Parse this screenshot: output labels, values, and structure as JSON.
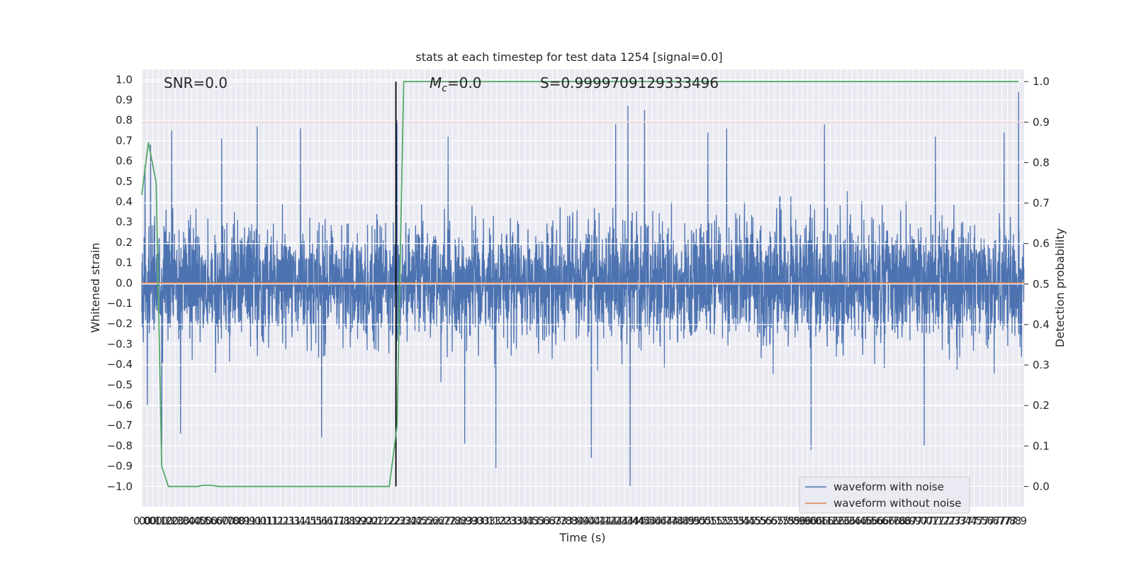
{
  "chart_data": {
    "type": "line",
    "title": "stats at each timestep for test data 1254 [signal=0.0]",
    "xlabel": "Time (s)",
    "ylabel_left": "Whitened strain",
    "ylabel_right": "Detection probability",
    "xlim": [
      0.0,
      7.95
    ],
    "ylim_left": [
      -1.1,
      1.05
    ],
    "ylim_right": [
      -0.05,
      1.03
    ],
    "grid": true,
    "x_ticks": [
      0.0,
      0.05,
      0.1,
      0.15,
      0.2,
      0.25,
      0.3,
      0.35,
      0.4,
      0.45,
      0.5,
      0.55,
      0.6,
      0.65,
      0.7,
      0.75,
      0.8,
      0.85,
      0.9,
      0.95,
      1.0,
      1.05,
      1.1,
      1.15,
      1.2,
      1.25,
      1.3,
      1.35,
      1.4,
      1.45,
      1.5,
      1.55,
      1.6,
      1.65,
      1.7,
      1.75,
      1.8,
      1.85,
      1.9,
      1.95,
      2.0,
      2.05,
      2.1,
      2.15,
      2.2,
      2.25,
      2.3,
      2.35,
      2.4,
      2.45,
      2.5,
      2.55,
      2.6,
      2.65,
      2.7,
      2.75,
      2.8,
      2.85,
      2.9,
      2.95,
      3.0,
      3.05,
      3.1,
      3.15,
      3.2,
      3.25,
      3.3,
      3.35,
      3.4,
      3.45,
      3.5,
      3.55,
      3.6,
      3.65,
      3.7,
      3.75,
      3.8,
      3.85,
      3.9,
      3.95,
      4.0,
      4.05,
      4.1,
      4.15,
      4.2,
      4.25,
      4.3,
      4.35,
      4.4,
      4.45,
      4.5,
      4.55,
      4.6,
      4.65,
      4.7,
      4.75,
      4.8,
      4.85,
      4.9,
      4.95,
      5.0,
      5.05,
      5.1,
      5.15,
      5.2,
      5.25,
      5.3,
      5.35,
      5.4,
      5.45,
      5.5,
      5.55,
      5.6,
      5.65,
      5.7,
      5.75,
      5.8,
      5.85,
      5.9,
      5.95,
      6.0,
      6.05,
      6.1,
      6.15,
      6.2,
      6.25,
      6.3,
      6.35,
      6.4,
      6.45,
      6.5,
      6.55,
      6.6,
      6.65,
      6.7,
      6.75,
      6.8,
      6.85,
      6.9,
      6.95,
      7.0,
      7.05,
      7.1,
      7.15,
      7.2,
      7.25,
      7.3,
      7.35,
      7.4,
      7.45,
      7.5,
      7.55,
      7.6,
      7.65,
      7.7,
      7.75,
      7.8,
      7.85,
      7.9
    ],
    "x_tick_labels": [
      "0.0",
      "0.0",
      "0.1",
      "0.1",
      "0.2",
      "0.2",
      "0.3",
      "0.3",
      "0.4",
      "0.4",
      "0.5",
      "0.5",
      "0.6",
      "0.6",
      "0.7",
      "0.7",
      "0.8",
      "0.8",
      "0.9",
      "0.9",
      "1.0",
      "1.0",
      "1.1",
      "1.1",
      "1.2",
      "1.2",
      "1.3",
      "1.3",
      "1.4",
      "1.4",
      "1.5",
      "1.5",
      "1.6",
      "1.6",
      "1.7",
      "1.7",
      "1.8",
      "1.8",
      "1.9",
      "1.9",
      "2.0",
      "2.0",
      "2.1",
      "2.1",
      "2.2",
      "2.2",
      "2.3",
      "2.3",
      "2.4",
      "2.4",
      "2.5",
      "2.5",
      "2.6",
      "2.6",
      "2.7",
      "2.7",
      "2.8",
      "2.8",
      "2.9",
      "2.9",
      "3.0",
      "3.0",
      "3.1",
      "3.1",
      "3.2",
      "3.2",
      "3.3",
      "3.3",
      "3.4",
      "3.4",
      "3.5",
      "3.5",
      "3.6",
      "3.6",
      "3.7",
      "3.7",
      "3.8",
      "3.8",
      "3.9",
      "3.9",
      "4.0",
      "4.0",
      "4.1",
      "4.1",
      "4.2",
      "4.2",
      "4.3",
      "4.3",
      "4.4",
      "4.4",
      "4.5",
      "4.5",
      "4.6",
      "4.6",
      "4.7",
      "4.7",
      "4.8",
      "4.8",
      "4.9",
      "4.9",
      "5.0",
      "5.0",
      "5.1",
      "5.1",
      "5.2",
      "5.2",
      "5.3",
      "5.3",
      "5.4",
      "5.4",
      "5.5",
      "5.5",
      "5.6",
      "5.6",
      "5.7",
      "5.7",
      "5.8",
      "5.8",
      "5.9",
      "5.9",
      "6.0",
      "6.0",
      "6.1",
      "6.1",
      "6.2",
      "6.2",
      "6.3",
      "6.3",
      "6.4",
      "6.4",
      "6.5",
      "6.5",
      "6.6",
      "6.6",
      "6.7",
      "6.7",
      "6.8",
      "6.8",
      "6.9",
      "6.9",
      "7.0",
      "7.0",
      "7.1",
      "7.1",
      "7.2",
      "7.2",
      "7.3",
      "7.3",
      "7.4",
      "7.4",
      "7.5",
      "7.5",
      "7.6",
      "7.6",
      "7.7",
      "7.7",
      "7.8",
      "7.8",
      "7.9"
    ],
    "y_ticks_left": [
      -1.0,
      -0.9,
      -0.8,
      -0.7,
      -0.6,
      -0.5,
      -0.4,
      -0.3,
      -0.2,
      -0.1,
      0.0,
      0.1,
      0.2,
      0.3,
      0.4,
      0.5,
      0.6,
      0.7,
      0.8,
      0.9,
      1.0
    ],
    "y_tick_labels_left": [
      "−1.0",
      "−0.9",
      "−0.8",
      "−0.7",
      "−0.6",
      "−0.5",
      "−0.4",
      "−0.3",
      "−0.2",
      "−0.1",
      "0.0",
      "0.1",
      "0.2",
      "0.3",
      "0.4",
      "0.5",
      "0.6",
      "0.7",
      "0.8",
      "0.9",
      "1.0"
    ],
    "y_ticks_right": [
      0.0,
      0.1,
      0.2,
      0.3,
      0.4,
      0.5,
      0.6,
      0.7,
      0.8,
      0.9,
      1.0
    ],
    "y_tick_labels_right": [
      "0.0",
      "0.1",
      "0.2",
      "0.3",
      "0.4",
      "0.5",
      "0.6",
      "0.7",
      "0.8",
      "0.9",
      "1.0"
    ],
    "annotations": {
      "snr": "SNR=0.0",
      "mc": "=0.0",
      "mc_symbol": "M",
      "mc_sub": "c",
      "s": "S=0.9999709129333496"
    },
    "series": [
      {
        "name": "waveform with noise",
        "axis": "left",
        "kind": "noise",
        "color": "#4c72b0",
        "n_samples": 4096,
        "typical_envelope": [
          -0.45,
          0.45
        ],
        "peaks": [
          {
            "x": 0.03,
            "y": 0.58
          },
          {
            "x": 0.05,
            "y": -0.6
          },
          {
            "x": 0.08,
            "y": 0.68
          },
          {
            "x": 0.18,
            "y": -0.81
          },
          {
            "x": 0.27,
            "y": 0.75
          },
          {
            "x": 0.35,
            "y": -0.74
          },
          {
            "x": 0.72,
            "y": 0.71
          },
          {
            "x": 1.04,
            "y": 0.77
          },
          {
            "x": 1.43,
            "y": 0.76
          },
          {
            "x": 1.62,
            "y": -0.76
          },
          {
            "x": 2.3,
            "y": 0.8
          },
          {
            "x": 2.76,
            "y": 0.72
          },
          {
            "x": 2.91,
            "y": -0.79
          },
          {
            "x": 3.19,
            "y": -0.91
          },
          {
            "x": 4.05,
            "y": -0.86
          },
          {
            "x": 4.27,
            "y": 0.78
          },
          {
            "x": 4.38,
            "y": 0.87
          },
          {
            "x": 4.4,
            "y": -1.0
          },
          {
            "x": 4.53,
            "y": 0.85
          },
          {
            "x": 5.1,
            "y": 0.74
          },
          {
            "x": 5.27,
            "y": 0.76
          },
          {
            "x": 6.03,
            "y": -0.82
          },
          {
            "x": 6.15,
            "y": 0.78
          },
          {
            "x": 7.05,
            "y": -0.8
          },
          {
            "x": 7.15,
            "y": 0.72
          },
          {
            "x": 7.77,
            "y": 0.74
          },
          {
            "x": 7.9,
            "y": 0.94
          }
        ]
      },
      {
        "name": "waveform without noise",
        "axis": "left",
        "kind": "line",
        "color": "#dd8452",
        "x": [
          0.0,
          7.95
        ],
        "y": [
          0.0,
          0.0
        ]
      },
      {
        "name": "",
        "axis": "right",
        "kind": "line",
        "color": "#55a868",
        "x": [
          0.0,
          0.06,
          0.13,
          0.18,
          0.24,
          0.5,
          0.55,
          0.62,
          0.7,
          1.0,
          2.0,
          2.23,
          2.3,
          2.36,
          2.5,
          7.9
        ],
        "y": [
          0.72,
          0.85,
          0.75,
          0.05,
          0.0,
          0.0,
          0.003,
          0.003,
          0.0,
          0.0,
          0.0,
          0.0,
          0.15,
          1.0,
          1.0,
          1.0
        ]
      }
    ],
    "threshold_line": {
      "axis": "right",
      "y": 0.9,
      "color": "#c44e52"
    },
    "vertical_line": {
      "x": 2.29,
      "y_range_right": [
        0.0,
        1.0
      ],
      "color": "#000000"
    },
    "legend": {
      "placement": "lower-right",
      "entries": [
        {
          "label": "waveform with noise",
          "color": "#4c72b0"
        },
        {
          "label": "waveform without noise",
          "color": "#dd8452"
        }
      ]
    },
    "colors": {
      "background": "#eaeaf2",
      "grid": "#ffffff"
    }
  }
}
